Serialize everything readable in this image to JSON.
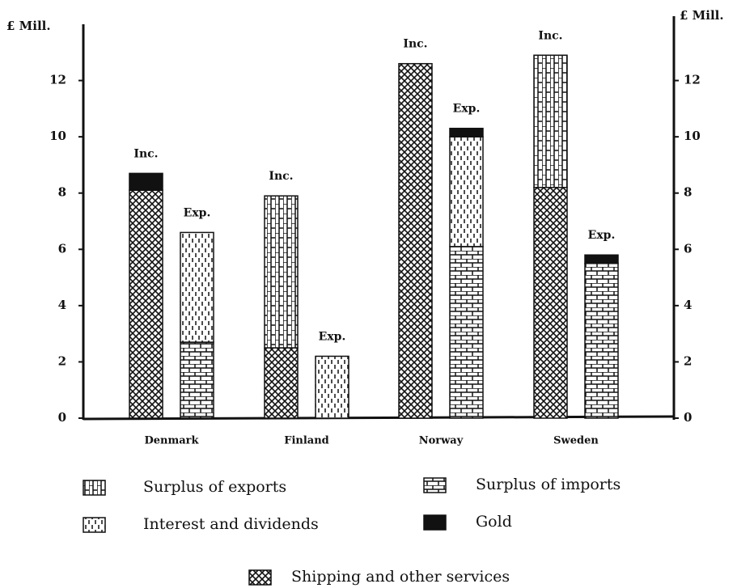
{
  "chart_data": {
    "type": "stacked_bar",
    "ylabel": "£ Mill.",
    "y2label": "£ Mill.",
    "categories": [
      "Denmark",
      "Finland",
      "Norway",
      "Sweden"
    ],
    "bar_labels": [
      "Inc.",
      "Exp."
    ],
    "series": [
      {
        "name": "Surplus of exports",
        "pattern": "bricks-vertical",
        "values": [
          [
            null,
            null
          ],
          [
            5.4,
            null
          ],
          [
            null,
            null
          ],
          [
            4.7,
            null
          ]
        ]
      },
      {
        "name": "Surplus of imports",
        "pattern": "bricks-horizontal",
        "values": [
          [
            null,
            2.7
          ],
          [
            null,
            null
          ],
          [
            null,
            6.1
          ],
          [
            null,
            5.5
          ]
        ]
      },
      {
        "name": "Interest and dividends",
        "pattern": "dashes",
        "values": [
          [
            null,
            3.9
          ],
          [
            null,
            2.2
          ],
          [
            null,
            3.9
          ],
          [
            null,
            null
          ]
        ]
      },
      {
        "name": "Gold",
        "pattern": "solid",
        "values": [
          [
            0.6,
            null
          ],
          [
            null,
            null
          ],
          [
            null,
            0.3
          ],
          [
            null,
            0.3
          ]
        ]
      },
      {
        "name": "Shipping and other services",
        "pattern": "crosshatch",
        "values": [
          [
            8.1,
            null
          ],
          [
            2.5,
            null
          ],
          [
            12.6,
            null
          ],
          [
            8.2,
            null
          ]
        ]
      }
    ],
    "ylim": [
      0,
      14
    ],
    "yticks": [
      0,
      2,
      4,
      6,
      8,
      10,
      12
    ],
    "y2lim": [
      0,
      14
    ],
    "y2ticks": [
      0,
      2,
      4,
      6,
      8,
      10,
      12
    ]
  }
}
